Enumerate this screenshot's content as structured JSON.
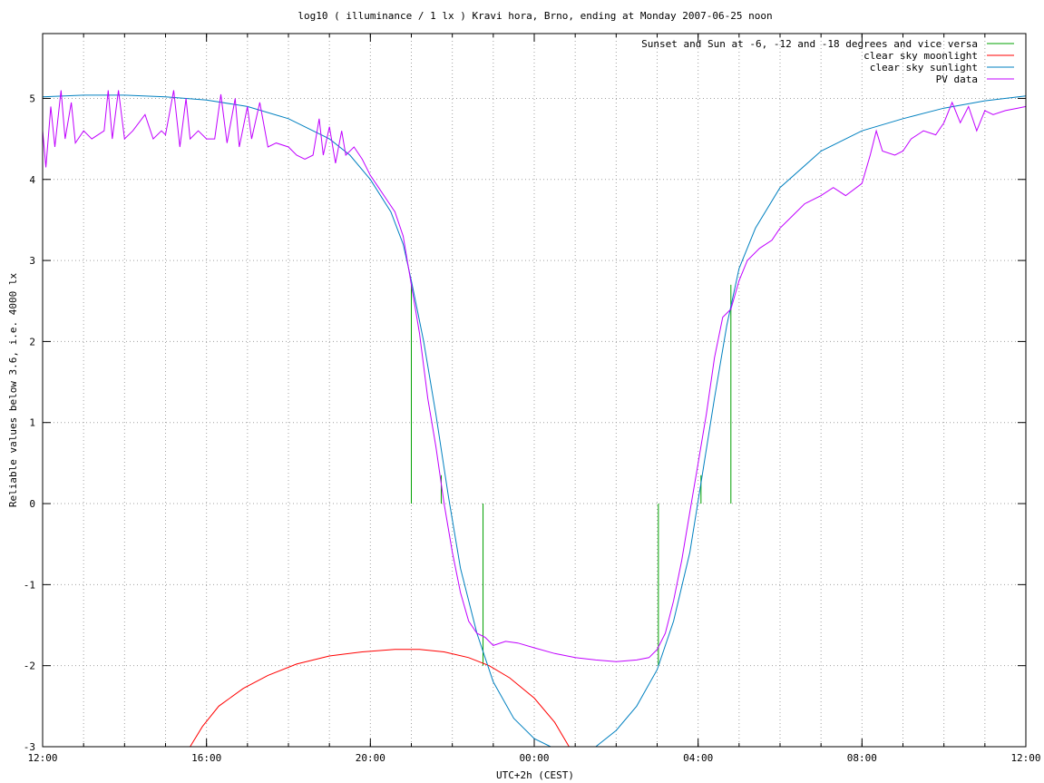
{
  "chart_data": {
    "type": "line",
    "title": "log10 ( illuminance / 1 lx ) Kravi hora, Brno, ending at Monday 2007-06-25 noon",
    "xlabel": "UTC+2h (CEST)",
    "ylabel": "Reliable values below 3.6, i.e. 4000 lx",
    "xlim": [
      0,
      24
    ],
    "ylim": [
      -3,
      5.8
    ],
    "x_unit": "hours since 12:00",
    "xticks": [
      {
        "value": 0,
        "label": "12:00"
      },
      {
        "value": 4,
        "label": "16:00"
      },
      {
        "value": 8,
        "label": "20:00"
      },
      {
        "value": 12,
        "label": "00:00"
      },
      {
        "value": 16,
        "label": "04:00"
      },
      {
        "value": 20,
        "label": "08:00"
      },
      {
        "value": 24,
        "label": "12:00"
      }
    ],
    "minor_xticks_every": 1,
    "yticks": [
      {
        "value": -3,
        "label": "-3"
      },
      {
        "value": -2,
        "label": "-2"
      },
      {
        "value": -1,
        "label": "-1"
      },
      {
        "value": 0,
        "label": "0"
      },
      {
        "value": 1,
        "label": "1"
      },
      {
        "value": 2,
        "label": "2"
      },
      {
        "value": 3,
        "label": "3"
      },
      {
        "value": 4,
        "label": "4"
      },
      {
        "value": 5,
        "label": "5"
      }
    ],
    "grid": true,
    "legend_position": "top-right",
    "series": [
      {
        "name": "Sunset and Sun at -6, -12 and -18 degrees and vice versa",
        "style": "impulses",
        "color": "#00a000",
        "points": [
          {
            "x": 9.0,
            "y": 2.7
          },
          {
            "x": 9.73,
            "y": 0.35
          },
          {
            "x": 10.75,
            "y": -2.0
          },
          {
            "x": 15.03,
            "y": -2.0
          },
          {
            "x": 16.07,
            "y": 0.35
          },
          {
            "x": 16.8,
            "y": 2.7
          }
        ]
      },
      {
        "name": "clear sky moonlight",
        "style": "line",
        "color": "#ff0000",
        "points": [
          {
            "x": 3.6,
            "y": -3.0
          },
          {
            "x": 3.9,
            "y": -2.75
          },
          {
            "x": 4.3,
            "y": -2.5
          },
          {
            "x": 4.9,
            "y": -2.28
          },
          {
            "x": 5.5,
            "y": -2.12
          },
          {
            "x": 6.2,
            "y": -1.98
          },
          {
            "x": 7.0,
            "y": -1.88
          },
          {
            "x": 7.8,
            "y": -1.83
          },
          {
            "x": 8.6,
            "y": -1.8
          },
          {
            "x": 9.2,
            "y": -1.8
          },
          {
            "x": 9.8,
            "y": -1.83
          },
          {
            "x": 10.4,
            "y": -1.9
          },
          {
            "x": 10.9,
            "y": -2.0
          },
          {
            "x": 11.4,
            "y": -2.15
          },
          {
            "x": 12.0,
            "y": -2.4
          },
          {
            "x": 12.5,
            "y": -2.7
          },
          {
            "x": 12.85,
            "y": -3.0
          }
        ]
      },
      {
        "name": "clear sky sunlight",
        "style": "line",
        "color": "#0080c0",
        "points": [
          {
            "x": 0.0,
            "y": 5.02
          },
          {
            "x": 1.0,
            "y": 5.04
          },
          {
            "x": 2.0,
            "y": 5.04
          },
          {
            "x": 3.0,
            "y": 5.02
          },
          {
            "x": 4.0,
            "y": 4.98
          },
          {
            "x": 5.0,
            "y": 4.9
          },
          {
            "x": 6.0,
            "y": 4.75
          },
          {
            "x": 7.0,
            "y": 4.5
          },
          {
            "x": 7.5,
            "y": 4.3
          },
          {
            "x": 8.0,
            "y": 4.0
          },
          {
            "x": 8.5,
            "y": 3.6
          },
          {
            "x": 8.8,
            "y": 3.2
          },
          {
            "x": 9.0,
            "y": 2.75
          },
          {
            "x": 9.3,
            "y": 2.0
          },
          {
            "x": 9.6,
            "y": 1.1
          },
          {
            "x": 9.9,
            "y": 0.1
          },
          {
            "x": 10.2,
            "y": -0.8
          },
          {
            "x": 10.6,
            "y": -1.6
          },
          {
            "x": 11.0,
            "y": -2.2
          },
          {
            "x": 11.5,
            "y": -2.65
          },
          {
            "x": 12.0,
            "y": -2.9
          },
          {
            "x": 12.4,
            "y": -3.0
          },
          {
            "x": 13.5,
            "y": -3.0
          },
          {
            "x": 14.0,
            "y": -2.8
          },
          {
            "x": 14.5,
            "y": -2.5
          },
          {
            "x": 15.0,
            "y": -2.05
          },
          {
            "x": 15.4,
            "y": -1.45
          },
          {
            "x": 15.8,
            "y": -0.6
          },
          {
            "x": 16.1,
            "y": 0.35
          },
          {
            "x": 16.4,
            "y": 1.3
          },
          {
            "x": 16.7,
            "y": 2.2
          },
          {
            "x": 17.0,
            "y": 2.9
          },
          {
            "x": 17.4,
            "y": 3.4
          },
          {
            "x": 18.0,
            "y": 3.9
          },
          {
            "x": 19.0,
            "y": 4.35
          },
          {
            "x": 20.0,
            "y": 4.6
          },
          {
            "x": 21.0,
            "y": 4.75
          },
          {
            "x": 22.0,
            "y": 4.88
          },
          {
            "x": 23.0,
            "y": 4.97
          },
          {
            "x": 24.0,
            "y": 5.03
          }
        ]
      },
      {
        "name": "PV data",
        "style": "line",
        "color": "#c000ff",
        "points": [
          {
            "x": 0.0,
            "y": 4.6
          },
          {
            "x": 0.08,
            "y": 4.15
          },
          {
            "x": 0.2,
            "y": 4.9
          },
          {
            "x": 0.3,
            "y": 4.4
          },
          {
            "x": 0.45,
            "y": 5.1
          },
          {
            "x": 0.55,
            "y": 4.5
          },
          {
            "x": 0.7,
            "y": 4.95
          },
          {
            "x": 0.8,
            "y": 4.45
          },
          {
            "x": 1.0,
            "y": 4.6
          },
          {
            "x": 1.2,
            "y": 4.5
          },
          {
            "x": 1.5,
            "y": 4.6
          },
          {
            "x": 1.6,
            "y": 5.1
          },
          {
            "x": 1.7,
            "y": 4.5
          },
          {
            "x": 1.85,
            "y": 5.1
          },
          {
            "x": 2.0,
            "y": 4.5
          },
          {
            "x": 2.2,
            "y": 4.6
          },
          {
            "x": 2.5,
            "y": 4.8
          },
          {
            "x": 2.7,
            "y": 4.5
          },
          {
            "x": 2.9,
            "y": 4.6
          },
          {
            "x": 3.0,
            "y": 4.55
          },
          {
            "x": 3.2,
            "y": 5.1
          },
          {
            "x": 3.35,
            "y": 4.4
          },
          {
            "x": 3.5,
            "y": 5.0
          },
          {
            "x": 3.6,
            "y": 4.5
          },
          {
            "x": 3.8,
            "y": 4.6
          },
          {
            "x": 4.0,
            "y": 4.5
          },
          {
            "x": 4.2,
            "y": 4.5
          },
          {
            "x": 4.35,
            "y": 5.05
          },
          {
            "x": 4.5,
            "y": 4.45
          },
          {
            "x": 4.7,
            "y": 5.0
          },
          {
            "x": 4.8,
            "y": 4.4
          },
          {
            "x": 5.0,
            "y": 4.9
          },
          {
            "x": 5.1,
            "y": 4.5
          },
          {
            "x": 5.3,
            "y": 4.95
          },
          {
            "x": 5.5,
            "y": 4.4
          },
          {
            "x": 5.7,
            "y": 4.45
          },
          {
            "x": 6.0,
            "y": 4.4
          },
          {
            "x": 6.2,
            "y": 4.3
          },
          {
            "x": 6.4,
            "y": 4.25
          },
          {
            "x": 6.6,
            "y": 4.3
          },
          {
            "x": 6.75,
            "y": 4.75
          },
          {
            "x": 6.85,
            "y": 4.3
          },
          {
            "x": 7.0,
            "y": 4.65
          },
          {
            "x": 7.15,
            "y": 4.2
          },
          {
            "x": 7.3,
            "y": 4.6
          },
          {
            "x": 7.4,
            "y": 4.3
          },
          {
            "x": 7.6,
            "y": 4.4
          },
          {
            "x": 7.8,
            "y": 4.25
          },
          {
            "x": 8.0,
            "y": 4.05
          },
          {
            "x": 8.2,
            "y": 3.9
          },
          {
            "x": 8.4,
            "y": 3.75
          },
          {
            "x": 8.6,
            "y": 3.6
          },
          {
            "x": 8.8,
            "y": 3.3
          },
          {
            "x": 9.0,
            "y": 2.7
          },
          {
            "x": 9.2,
            "y": 2.1
          },
          {
            "x": 9.4,
            "y": 1.3
          },
          {
            "x": 9.6,
            "y": 0.7
          },
          {
            "x": 9.8,
            "y": 0.0
          },
          {
            "x": 10.0,
            "y": -0.6
          },
          {
            "x": 10.2,
            "y": -1.1
          },
          {
            "x": 10.4,
            "y": -1.45
          },
          {
            "x": 10.6,
            "y": -1.6
          },
          {
            "x": 10.8,
            "y": -1.65
          },
          {
            "x": 11.0,
            "y": -1.75
          },
          {
            "x": 11.3,
            "y": -1.7
          },
          {
            "x": 11.6,
            "y": -1.72
          },
          {
            "x": 12.0,
            "y": -1.78
          },
          {
            "x": 12.5,
            "y": -1.85
          },
          {
            "x": 13.0,
            "y": -1.9
          },
          {
            "x": 13.5,
            "y": -1.93
          },
          {
            "x": 14.0,
            "y": -1.95
          },
          {
            "x": 14.5,
            "y": -1.93
          },
          {
            "x": 14.8,
            "y": -1.9
          },
          {
            "x": 15.0,
            "y": -1.8
          },
          {
            "x": 15.2,
            "y": -1.6
          },
          {
            "x": 15.4,
            "y": -1.2
          },
          {
            "x": 15.6,
            "y": -0.7
          },
          {
            "x": 15.8,
            "y": -0.1
          },
          {
            "x": 16.0,
            "y": 0.5
          },
          {
            "x": 16.2,
            "y": 1.1
          },
          {
            "x": 16.4,
            "y": 1.8
          },
          {
            "x": 16.6,
            "y": 2.3
          },
          {
            "x": 16.8,
            "y": 2.4
          },
          {
            "x": 17.0,
            "y": 2.75
          },
          {
            "x": 17.2,
            "y": 3.0
          },
          {
            "x": 17.5,
            "y": 3.15
          },
          {
            "x": 17.8,
            "y": 3.25
          },
          {
            "x": 18.0,
            "y": 3.4
          },
          {
            "x": 18.3,
            "y": 3.55
          },
          {
            "x": 18.6,
            "y": 3.7
          },
          {
            "x": 19.0,
            "y": 3.8
          },
          {
            "x": 19.3,
            "y": 3.9
          },
          {
            "x": 19.6,
            "y": 3.8
          },
          {
            "x": 20.0,
            "y": 3.95
          },
          {
            "x": 20.2,
            "y": 4.3
          },
          {
            "x": 20.35,
            "y": 4.6
          },
          {
            "x": 20.5,
            "y": 4.35
          },
          {
            "x": 20.8,
            "y": 4.3
          },
          {
            "x": 21.0,
            "y": 4.35
          },
          {
            "x": 21.2,
            "y": 4.5
          },
          {
            "x": 21.5,
            "y": 4.6
          },
          {
            "x": 21.8,
            "y": 4.55
          },
          {
            "x": 22.0,
            "y": 4.7
          },
          {
            "x": 22.2,
            "y": 4.95
          },
          {
            "x": 22.4,
            "y": 4.7
          },
          {
            "x": 22.6,
            "y": 4.9
          },
          {
            "x": 22.8,
            "y": 4.6
          },
          {
            "x": 23.0,
            "y": 4.85
          },
          {
            "x": 23.2,
            "y": 4.8
          },
          {
            "x": 23.5,
            "y": 4.85
          },
          {
            "x": 23.8,
            "y": 4.88
          },
          {
            "x": 24.0,
            "y": 4.9
          }
        ]
      }
    ]
  }
}
